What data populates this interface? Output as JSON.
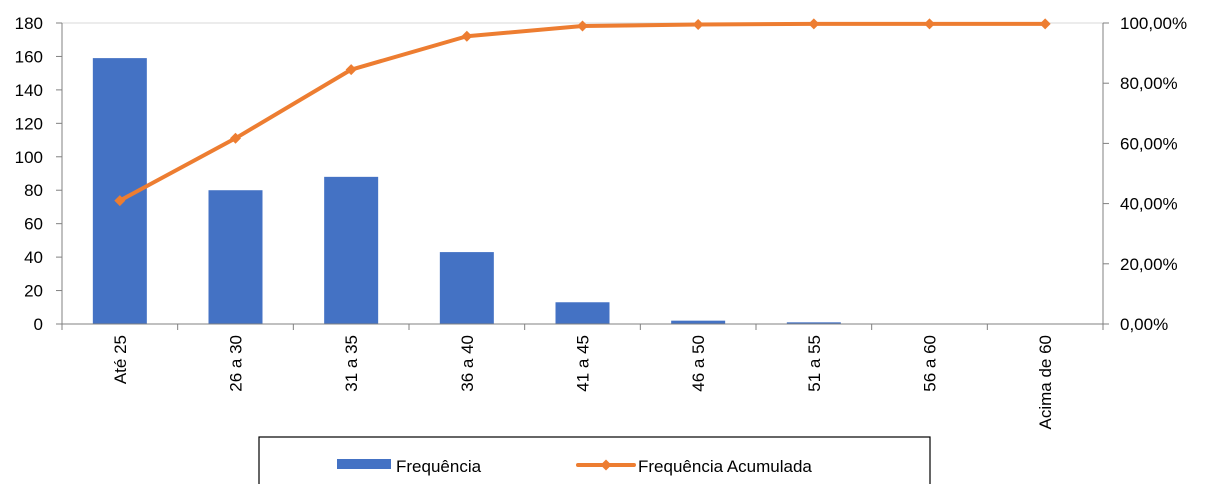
{
  "chart_data": {
    "type": "bar",
    "categories": [
      "Até 25",
      "26 a 30",
      "31 a 35",
      "36 a 40",
      "41 a 45",
      "46 a 50",
      "51 a 55",
      "56 a 60",
      "Acima de 60"
    ],
    "series": [
      {
        "name": "Frequência",
        "type": "bar",
        "axis": "left",
        "color": "#4472C4",
        "values": [
          159,
          80,
          88,
          43,
          13,
          2,
          1,
          0,
          0
        ]
      },
      {
        "name": "Frequência Acumulada",
        "type": "line",
        "axis": "right",
        "color": "#ED7D31",
        "values": [
          41.0,
          61.7,
          84.5,
          95.6,
          99.0,
          99.5,
          99.7,
          99.7,
          99.7
        ]
      }
    ],
    "y_left": {
      "ylim": [
        0,
        180
      ],
      "ticks": [
        0,
        20,
        40,
        60,
        80,
        100,
        120,
        140,
        160,
        180
      ],
      "tick_labels": [
        "0",
        "20",
        "40",
        "60",
        "80",
        "100",
        "120",
        "140",
        "160",
        "180"
      ]
    },
    "y_right": {
      "ylim": [
        0,
        100
      ],
      "ticks": [
        0,
        20,
        40,
        60,
        80,
        100
      ],
      "tick_labels": [
        "0,00%",
        "20,00%",
        "40,00%",
        "60,00%",
        "80,00%",
        "100,00%"
      ]
    },
    "grid": false,
    "legend": {
      "position": "bottom",
      "entries": [
        "Frequência",
        "Frequência Acumulada"
      ]
    },
    "title": "",
    "xlabel": "",
    "ylabel": ""
  }
}
